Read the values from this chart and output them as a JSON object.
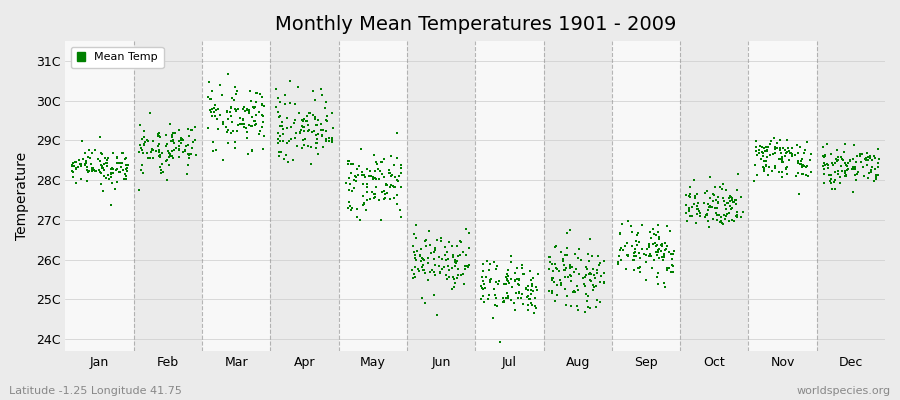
{
  "title": "Monthly Mean Temperatures 1901 - 2009",
  "ylabel": "Temperature",
  "subtitle_left": "Latitude -1.25 Longitude 41.75",
  "subtitle_right": "worldspecies.org",
  "ytick_labels": [
    "24C",
    "25C",
    "26C",
    "27C",
    "28C",
    "29C",
    "30C",
    "31C"
  ],
  "ytick_values": [
    24,
    25,
    26,
    27,
    28,
    29,
    30,
    31
  ],
  "ylim": [
    23.7,
    31.5
  ],
  "months": [
    "Jan",
    "Feb",
    "Mar",
    "Apr",
    "May",
    "Jun",
    "Jul",
    "Aug",
    "Sep",
    "Oct",
    "Nov",
    "Dec"
  ],
  "month_means": [
    28.35,
    28.75,
    29.55,
    29.3,
    27.95,
    26.0,
    25.35,
    25.6,
    26.2,
    27.35,
    28.5,
    28.4
  ],
  "month_stds": [
    0.22,
    0.28,
    0.35,
    0.38,
    0.42,
    0.38,
    0.38,
    0.35,
    0.32,
    0.28,
    0.28,
    0.25
  ],
  "n_years": 109,
  "dot_color": "#008000",
  "dot_size": 3,
  "bg_color_light": "#ebebeb",
  "bg_color_white": "#f8f8f8",
  "grid_color": "#999999",
  "legend_label": "Mean Temp",
  "seed": 42
}
